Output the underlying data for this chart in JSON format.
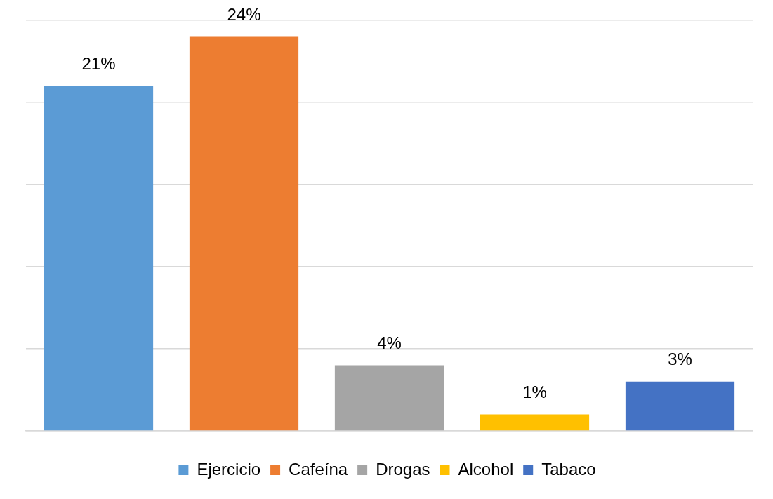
{
  "chart_data": {
    "type": "bar",
    "categories": [
      null,
      null,
      null,
      null,
      null
    ],
    "stacked": true,
    "series": [
      {
        "name": "Ejercicio",
        "color": "#5b9bd5",
        "values": [
          21,
          null,
          null,
          null,
          null
        ],
        "value_labels": [
          "21%",
          null,
          null,
          null,
          null
        ]
      },
      {
        "name": "Cafeína",
        "color": "#ed7d31",
        "values": [
          null,
          24,
          null,
          null,
          null
        ],
        "value_labels": [
          null,
          "24%",
          null,
          null,
          null
        ]
      },
      {
        "name": "Drogas",
        "color": "#a5a5a5",
        "values": [
          null,
          null,
          4,
          null,
          null
        ],
        "value_labels": [
          null,
          null,
          "4%",
          null,
          null
        ]
      },
      {
        "name": "Alcohol",
        "color": "#ffc000",
        "values": [
          null,
          null,
          null,
          1,
          null
        ],
        "value_labels": [
          null,
          null,
          null,
          "1%",
          null
        ]
      },
      {
        "name": "Tabaco",
        "color": "#4472c4",
        "values": [
          null,
          null,
          null,
          null,
          3
        ],
        "value_labels": [
          null,
          null,
          null,
          null,
          "3%"
        ]
      }
    ],
    "ylim": [
      0,
      25
    ],
    "yticks": [
      {
        "value": 0,
        "label": null
      },
      {
        "value": 5,
        "label": null
      },
      {
        "value": 10,
        "label": null
      },
      {
        "value": 15,
        "label": null
      },
      {
        "value": 20,
        "label": null
      },
      {
        "value": 25,
        "label": null
      }
    ],
    "grid": "y",
    "legend": "bottom"
  }
}
